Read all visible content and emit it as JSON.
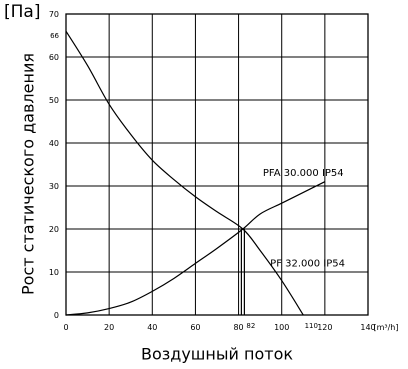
{
  "chart_data": {
    "type": "line",
    "title": "",
    "y_unit_label": "[Па]",
    "ylabel": "Рост статического давления",
    "xlabel": "Воздушный поток",
    "x_unit_label": "[m³/h]",
    "xlim": [
      0,
      140
    ],
    "ylim": [
      0,
      70
    ],
    "x_ticks": [
      "0",
      "20",
      "40",
      "60",
      "80",
      "100",
      "120",
      "140"
    ],
    "y_ticks": [
      "0",
      "10",
      "20",
      "30",
      "40",
      "50",
      "60",
      "70"
    ],
    "grid": true,
    "annotations": [
      {
        "text": "66",
        "axis": "y",
        "value": 66
      },
      {
        "text": "82",
        "axis": "x",
        "value": 82
      },
      {
        "text": "110",
        "axis": "x",
        "value": 110
      }
    ],
    "operating_point": {
      "x": 82,
      "y": 20
    },
    "series": [
      {
        "name": "PF 32.000 IP54",
        "points": [
          [
            0,
            66
          ],
          [
            10,
            58
          ],
          [
            20,
            49
          ],
          [
            30,
            42
          ],
          [
            40,
            36
          ],
          [
            50,
            31.5
          ],
          [
            60,
            27.5
          ],
          [
            70,
            24
          ],
          [
            82,
            20
          ],
          [
            90,
            15
          ],
          [
            100,
            8
          ],
          [
            110,
            0
          ]
        ]
      },
      {
        "name": "PFA 30.000 IP54",
        "points": [
          [
            0,
            0
          ],
          [
            10,
            0.5
          ],
          [
            20,
            1.5
          ],
          [
            30,
            3
          ],
          [
            40,
            5.5
          ],
          [
            50,
            8.5
          ],
          [
            60,
            12
          ],
          [
            70,
            15.5
          ],
          [
            82,
            20
          ],
          [
            90,
            23.5
          ],
          [
            100,
            26
          ],
          [
            110,
            28.5
          ],
          [
            120,
            31
          ]
        ]
      }
    ]
  }
}
